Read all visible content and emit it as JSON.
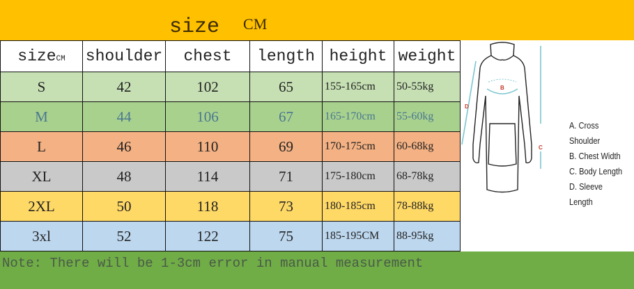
{
  "title": {
    "text": "size",
    "unit": "CM"
  },
  "table": {
    "headers": [
      "size",
      "shoulder",
      "chest",
      "length",
      "height",
      "weight"
    ],
    "header_size_unit": "CM",
    "rows": [
      {
        "size": "S",
        "shoulder": "42",
        "chest": "102",
        "length": "65",
        "height": "155-165cm",
        "weight": "50-55kg",
        "color": "#c6e0b4",
        "text_color": "#222222"
      },
      {
        "size": "M",
        "shoulder": "44",
        "chest": "106",
        "length": "67",
        "height": "165-170cm",
        "weight": "55-60kg",
        "color": "#a9d18e",
        "text_color": "#4a7890"
      },
      {
        "size": "L",
        "shoulder": "46",
        "chest": "110",
        "length": "69",
        "height": "170-175cm",
        "weight": "60-68kg",
        "color": "#f4b183",
        "text_color": "#222222"
      },
      {
        "size": "XL",
        "shoulder": "48",
        "chest": "114",
        "length": "71",
        "height": "175-180cm",
        "weight": "68-78kg",
        "color": "#c9c9c9",
        "text_color": "#222222"
      },
      {
        "size": "2XL",
        "shoulder": "50",
        "chest": "118",
        "length": "73",
        "height": "180-185cm",
        "weight": "78-88kg",
        "color": "#ffd966",
        "text_color": "#222222"
      },
      {
        "size": "3xl",
        "shoulder": "52",
        "chest": "122",
        "length": "75",
        "height": "185-195CM",
        "weight": "88-95kg",
        "color": "#bdd7ee",
        "text_color": "#222222"
      }
    ]
  },
  "diagram": {
    "markers": [
      "A",
      "B",
      "C",
      "D"
    ],
    "legend": [
      "A. Cross Shoulder",
      "B. Chest Width",
      "C. Body Length",
      "D. Sleeve Length"
    ]
  },
  "note": "Note: There will be 1-3cm error in manual measurement",
  "colors": {
    "top_band": "#ffc000",
    "bottom_band": "#70ad47",
    "measure_line": "#7cc5d0",
    "marker": "#c0392b"
  }
}
